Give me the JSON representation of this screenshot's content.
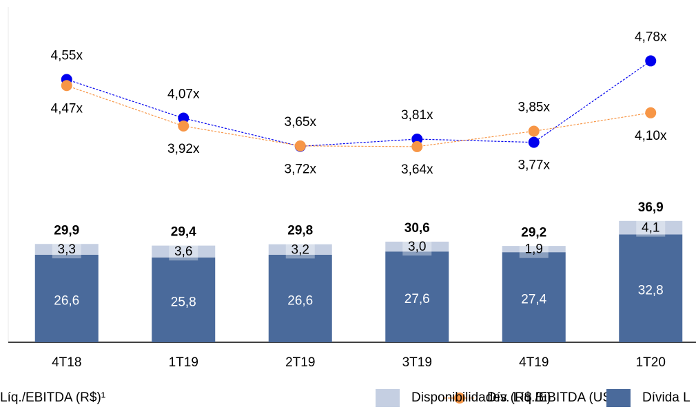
{
  "chart_data": {
    "type": "bar",
    "categories": [
      "4T18",
      "1T19",
      "2T19",
      "3T19",
      "4T19",
      "1T20"
    ],
    "ylim": [
      0,
      102
    ],
    "stacked": true,
    "series": [
      {
        "name": "Dívida L",
        "type": "bar",
        "color": "#4a6a9b",
        "values": [
          26.6,
          25.8,
          26.6,
          27.6,
          27.4,
          32.8
        ],
        "value_labels": [
          "26,6",
          "25,8",
          "26,6",
          "27,6",
          "27,4",
          "32,8"
        ]
      },
      {
        "name": "Disponibilidades (R$ Bi)",
        "type": "bar",
        "color": "#c5cfe2",
        "values": [
          3.3,
          3.6,
          3.2,
          3.0,
          1.9,
          4.1
        ],
        "value_labels": [
          "3,3",
          "3,6",
          "3,2",
          "3,0",
          "1,9",
          "4,1"
        ]
      },
      {
        "name": "Líq./EBITDA (R$)¹",
        "type": "line",
        "color": "#0000ee",
        "ylim": [
          1.29,
          5.45
        ],
        "values": [
          4.55,
          4.07,
          3.72,
          3.81,
          3.77,
          4.78
        ],
        "value_labels": [
          "4,55x",
          "4,07x",
          "3,72x",
          "3,81x",
          "3,77x",
          "4,78x"
        ]
      },
      {
        "name": "Dív. Líq./EBITDA (US$)¹",
        "type": "line",
        "color": "#f79646",
        "ylim": [
          0.98,
          5.54
        ],
        "values": [
          4.47,
          3.92,
          3.65,
          3.64,
          3.85,
          4.1
        ],
        "value_labels": [
          "4,47x",
          "3,92x",
          "3,65x",
          "3,64x",
          "3,85x",
          "4,10x"
        ]
      }
    ],
    "totals": [
      29.9,
      29.4,
      29.8,
      30.6,
      29.2,
      36.9
    ],
    "total_labels": [
      "29,9",
      "29,4",
      "29,8",
      "30,6",
      "29,2",
      "36,9"
    ]
  }
}
